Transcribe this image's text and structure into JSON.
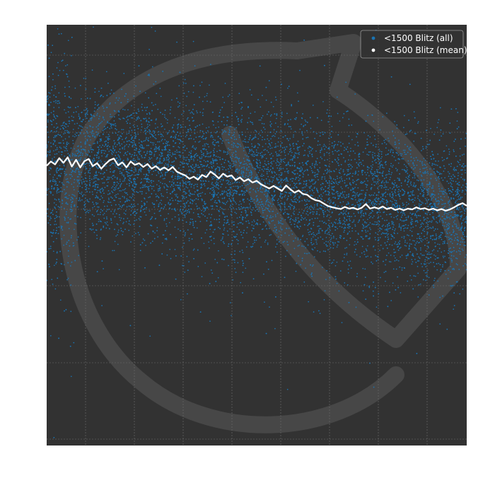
{
  "chart_data": {
    "type": "scatter",
    "title": "",
    "xlabel": "",
    "ylabel": "",
    "xlim": [
      0,
      1000
    ],
    "ylim": [
      0,
      100
    ],
    "grid": true,
    "legend_position": "top-right",
    "colors": {
      "plot_background": "#323232",
      "grid": "#6e6e6e",
      "watermark": "#474747",
      "all_points": "#1a74b3",
      "mean_line": "#ffffff"
    },
    "watermark_icon": "horse-head-logo",
    "series": [
      {
        "name": "<1500 Blitz (all)",
        "kind": "points",
        "color": "#1a74b3",
        "mean_trend": [
          [
            0,
            66.5
          ],
          [
            150,
            67
          ],
          [
            300,
            65.5
          ],
          [
            450,
            62.5
          ],
          [
            600,
            61.5
          ],
          [
            750,
            57.5
          ],
          [
            900,
            56
          ],
          [
            1000,
            57
          ]
        ],
        "spread": 8.5,
        "sample_count": 9000
      },
      {
        "name": "<1500 Blitz (mean)",
        "kind": "line",
        "color": "#ffffff",
        "points": [
          [
            0,
            66.5
          ],
          [
            10,
            67.5
          ],
          [
            20,
            66.8
          ],
          [
            30,
            68.3
          ],
          [
            40,
            67.2
          ],
          [
            50,
            68.5
          ],
          [
            60,
            66.3
          ],
          [
            70,
            67.9
          ],
          [
            80,
            66.1
          ],
          [
            90,
            67.6
          ],
          [
            100,
            68.1
          ],
          [
            110,
            66.4
          ],
          [
            120,
            67.1
          ],
          [
            130,
            65.8
          ],
          [
            140,
            66.9
          ],
          [
            150,
            67.8
          ],
          [
            160,
            68.2
          ],
          [
            170,
            66.6
          ],
          [
            180,
            67.3
          ],
          [
            190,
            66.1
          ],
          [
            200,
            67.5
          ],
          [
            210,
            66.7
          ],
          [
            220,
            67.1
          ],
          [
            230,
            66.2
          ],
          [
            240,
            66.9
          ],
          [
            250,
            65.8
          ],
          [
            260,
            66.4
          ],
          [
            270,
            65.5
          ],
          [
            280,
            66.1
          ],
          [
            290,
            65.4
          ],
          [
            300,
            66.2
          ],
          [
            310,
            65.1
          ],
          [
            320,
            64.6
          ],
          [
            330,
            64.2
          ],
          [
            340,
            63.4
          ],
          [
            350,
            63.9
          ],
          [
            360,
            63.2
          ],
          [
            370,
            64.3
          ],
          [
            380,
            63.8
          ],
          [
            390,
            65.1
          ],
          [
            400,
            64.4
          ],
          [
            410,
            63.5
          ],
          [
            420,
            64.6
          ],
          [
            430,
            63.9
          ],
          [
            440,
            64.2
          ],
          [
            450,
            63.1
          ],
          [
            460,
            63.7
          ],
          [
            470,
            62.8
          ],
          [
            480,
            63.3
          ],
          [
            490,
            62.5
          ],
          [
            500,
            62.9
          ],
          [
            510,
            62.1
          ],
          [
            520,
            61.6
          ],
          [
            530,
            61.1
          ],
          [
            540,
            61.7
          ],
          [
            550,
            61.1
          ],
          [
            560,
            60.5
          ],
          [
            570,
            61.8
          ],
          [
            580,
            60.9
          ],
          [
            590,
            60.1
          ],
          [
            600,
            60.6
          ],
          [
            610,
            59.8
          ],
          [
            620,
            59.6
          ],
          [
            630,
            58.8
          ],
          [
            640,
            58.3
          ],
          [
            650,
            58.1
          ],
          [
            660,
            57.5
          ],
          [
            670,
            56.9
          ],
          [
            680,
            56.6
          ],
          [
            690,
            56.4
          ],
          [
            700,
            56.2
          ],
          [
            710,
            56.7
          ],
          [
            720,
            56.3
          ],
          [
            730,
            56.5
          ],
          [
            740,
            56.1
          ],
          [
            750,
            56.5
          ],
          [
            760,
            57.4
          ],
          [
            770,
            56.3
          ],
          [
            780,
            56.6
          ],
          [
            790,
            56.3
          ],
          [
            800,
            56.8
          ],
          [
            810,
            56.2
          ],
          [
            820,
            56.5
          ],
          [
            830,
            56.0
          ],
          [
            840,
            56.3
          ],
          [
            850,
            55.9
          ],
          [
            860,
            56.3
          ],
          [
            870,
            56.1
          ],
          [
            880,
            56.6
          ],
          [
            890,
            56.2
          ],
          [
            900,
            56.4
          ],
          [
            910,
            56.0
          ],
          [
            920,
            56.3
          ],
          [
            930,
            55.9
          ],
          [
            940,
            56.2
          ],
          [
            950,
            55.8
          ],
          [
            960,
            56.1
          ],
          [
            970,
            56.6
          ],
          [
            980,
            57.2
          ],
          [
            990,
            57.6
          ],
          [
            1000,
            57.0
          ]
        ]
      }
    ]
  }
}
